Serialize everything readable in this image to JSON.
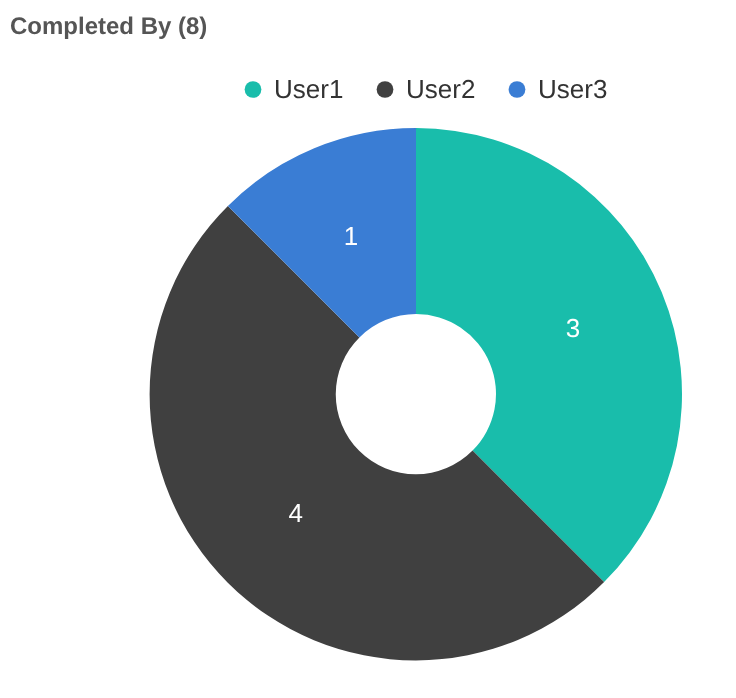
{
  "chart_data": {
    "type": "donut",
    "title": "Completed By (8)",
    "categories": [
      "User1",
      "User2",
      "User3"
    ],
    "values": [
      3,
      4,
      1
    ],
    "colors": [
      "#19bdab",
      "#404040",
      "#3a7dd4"
    ],
    "legend": "top",
    "data_labels": true
  }
}
